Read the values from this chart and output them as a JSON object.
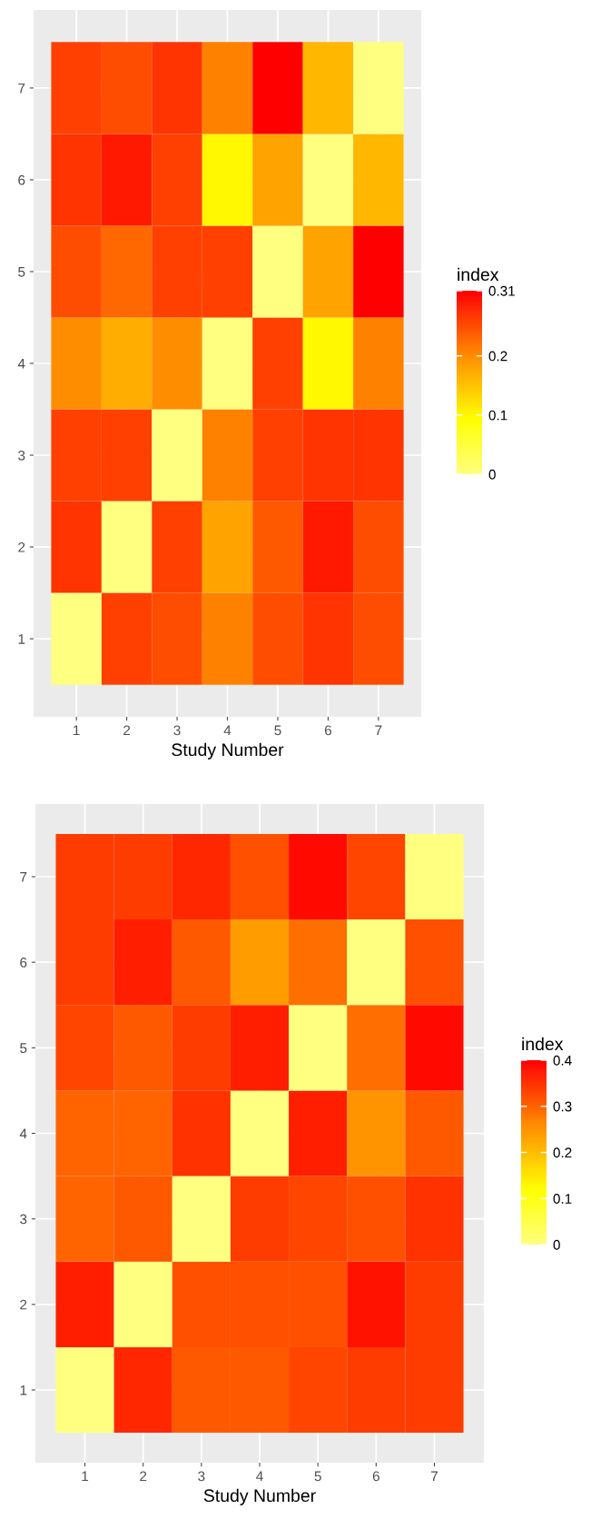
{
  "chart_data": [
    {
      "type": "heatmap",
      "xlabel": "Study Number",
      "clabel": "index",
      "categories": [
        "1",
        "2",
        "3",
        "4",
        "5",
        "6",
        "7"
      ],
      "y_categories": [
        "7",
        "6",
        "5",
        "4",
        "3",
        "2",
        "1"
      ],
      "cells": [
        [
          0.26,
          0.25,
          0.27,
          0.21,
          0.31,
          0.16,
          0
        ],
        [
          0.27,
          0.29,
          0.26,
          0.1,
          0.18,
          0,
          0.16
        ],
        [
          0.25,
          0.23,
          0.26,
          0.26,
          0,
          0.18,
          0.31
        ],
        [
          0.2,
          0.17,
          0.2,
          0,
          0.26,
          0.1,
          0.21
        ],
        [
          0.26,
          0.26,
          0,
          0.21,
          0.26,
          0.27,
          0.27
        ],
        [
          0.27,
          0,
          0.26,
          0.18,
          0.24,
          0.29,
          0.25
        ],
        [
          0,
          0.26,
          0.25,
          0.21,
          0.25,
          0.27,
          0.25
        ]
      ],
      "clim": [
        0,
        0.31
      ],
      "cticks": [
        0,
        0.1,
        0.2,
        0.31
      ],
      "grid": true
    },
    {
      "type": "heatmap",
      "xlabel": "Study Number",
      "clabel": "index",
      "categories": [
        "1",
        "2",
        "3",
        "4",
        "5",
        "6",
        "7"
      ],
      "y_categories": [
        "7",
        "6",
        "5",
        "4",
        "3",
        "2",
        "1"
      ],
      "cells": [
        [
          0.34,
          0.34,
          0.36,
          0.32,
          0.39,
          0.33,
          0
        ],
        [
          0.34,
          0.37,
          0.31,
          0.24,
          0.29,
          0,
          0.32
        ],
        [
          0.33,
          0.31,
          0.34,
          0.37,
          0,
          0.29,
          0.39
        ],
        [
          0.3,
          0.3,
          0.35,
          0,
          0.37,
          0.25,
          0.31
        ],
        [
          0.3,
          0.31,
          0,
          0.34,
          0.33,
          0.32,
          0.35
        ],
        [
          0.37,
          0,
          0.32,
          0.32,
          0.32,
          0.38,
          0.34
        ],
        [
          0,
          0.36,
          0.31,
          0.31,
          0.33,
          0.34,
          0.34
        ]
      ],
      "clim": [
        0,
        0.4
      ],
      "cticks": [
        0,
        0.1,
        0.2,
        0.3,
        0.4
      ],
      "grid": true
    }
  ]
}
